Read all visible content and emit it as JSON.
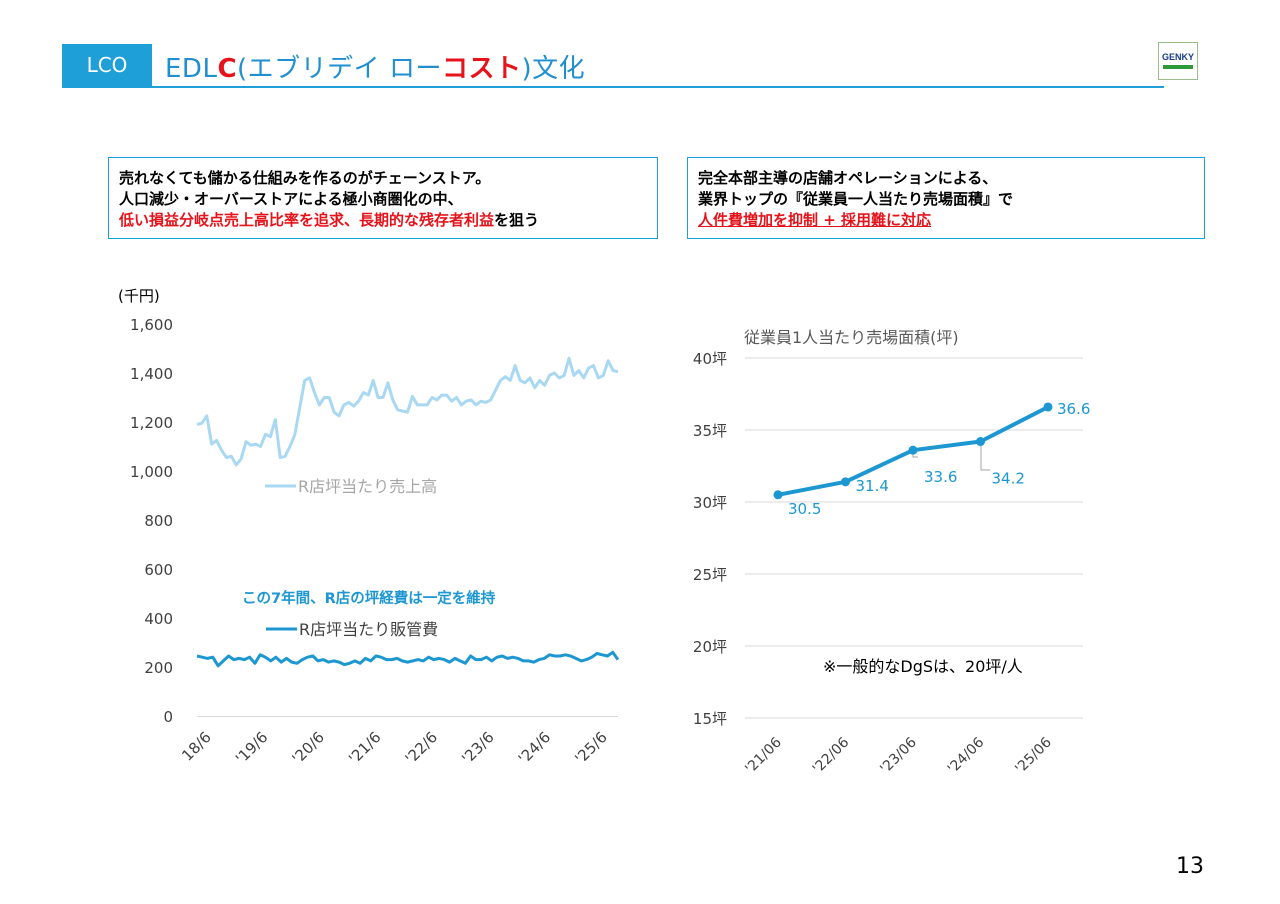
{
  "header": {
    "badge": "LCO",
    "title_parts": [
      "EDL",
      "C",
      "(エブリデイ ロー",
      "コスト",
      ")文化"
    ],
    "logo_text": "GENKY"
  },
  "callouts": {
    "left": {
      "line1": "売れなくても儲かる仕組みを作るのがチェーンストア。",
      "line2": "人口減少・オーバーストアによる極小商圏化の中、",
      "line3_red": "低い損益分岐点売上高比率を追求、長期的な残存者利益",
      "line3_tail": "を狙う"
    },
    "right": {
      "line1": "完全本部主導の店舗オペレーションによる、",
      "line2": "業界トップの『従業員一人当たり売場面積』で",
      "line3": "人件費増加を抑制 + 採用難に対応"
    }
  },
  "colors": {
    "accent": "#1f9fd8",
    "red": "#e6131b",
    "light_series": "#a9d8f2",
    "dark_series": "#1c97d1"
  },
  "chart_data": [
    {
      "type": "line",
      "unit_label": "(千円)",
      "ylim": [
        0,
        1600
      ],
      "yticks": [
        0,
        200,
        400,
        600,
        800,
        1000,
        1200,
        1400,
        1600
      ],
      "ytick_labels": [
        "0",
        "200",
        "400",
        "600",
        "800",
        "1,000",
        "1,200",
        "1,400",
        "1,600"
      ],
      "xtick_labels": [
        "18/6",
        "'19/6",
        "'20/6",
        "'21/6",
        "'22/6",
        "'23/6",
        "'24/6",
        "'25/6"
      ],
      "annotation": "この7年間、R店の坪経費は一定を維持",
      "series": [
        {
          "name": "R店坪当たり売上高",
          "values": [
            1190,
            1195,
            1225,
            1110,
            1125,
            1085,
            1055,
            1060,
            1025,
            1050,
            1120,
            1105,
            1110,
            1100,
            1150,
            1140,
            1210,
            1055,
            1060,
            1100,
            1150,
            1260,
            1370,
            1380,
            1320,
            1270,
            1300,
            1300,
            1240,
            1225,
            1270,
            1280,
            1265,
            1285,
            1320,
            1310,
            1370,
            1300,
            1300,
            1360,
            1290,
            1250,
            1245,
            1240,
            1305,
            1270,
            1270,
            1270,
            1300,
            1290,
            1310,
            1310,
            1285,
            1300,
            1270,
            1285,
            1290,
            1270,
            1285,
            1280,
            1290,
            1330,
            1370,
            1385,
            1370,
            1430,
            1370,
            1360,
            1380,
            1340,
            1370,
            1350,
            1390,
            1400,
            1380,
            1390,
            1460,
            1390,
            1410,
            1380,
            1420,
            1430,
            1380,
            1390,
            1450,
            1410,
            1405
          ]
        },
        {
          "name": "R店坪当たり販管費",
          "values": [
            245,
            240,
            235,
            240,
            205,
            225,
            245,
            230,
            235,
            230,
            240,
            215,
            250,
            240,
            225,
            240,
            220,
            235,
            220,
            215,
            230,
            240,
            245,
            225,
            230,
            220,
            225,
            220,
            210,
            215,
            225,
            215,
            235,
            225,
            245,
            240,
            230,
            230,
            235,
            225,
            220,
            225,
            230,
            225,
            240,
            230,
            235,
            230,
            220,
            235,
            225,
            215,
            245,
            230,
            230,
            240,
            225,
            240,
            245,
            235,
            240,
            235,
            225,
            225,
            220,
            230,
            235,
            250,
            245,
            245,
            250,
            245,
            235,
            225,
            230,
            240,
            255,
            250,
            245,
            260,
            230
          ]
        }
      ]
    },
    {
      "type": "line",
      "title": "従業員1人当たり売場面積(坪)",
      "ylim": [
        15,
        40
      ],
      "yticks": [
        15,
        20,
        25,
        30,
        35,
        40
      ],
      "ytick_labels": [
        "15坪",
        "20坪",
        "25坪",
        "30坪",
        "35坪",
        "40坪"
      ],
      "categories": [
        "'21/06",
        "'22/06",
        "'23/06",
        "'24/06",
        "'25/06"
      ],
      "values": [
        30.5,
        31.4,
        33.6,
        34.2,
        36.6
      ],
      "data_labels": [
        "30.5",
        "31.4",
        "33.6",
        "34.2",
        "36.6"
      ],
      "note": "※一般的なDgSは、20坪/人"
    }
  ],
  "page_number": "13"
}
